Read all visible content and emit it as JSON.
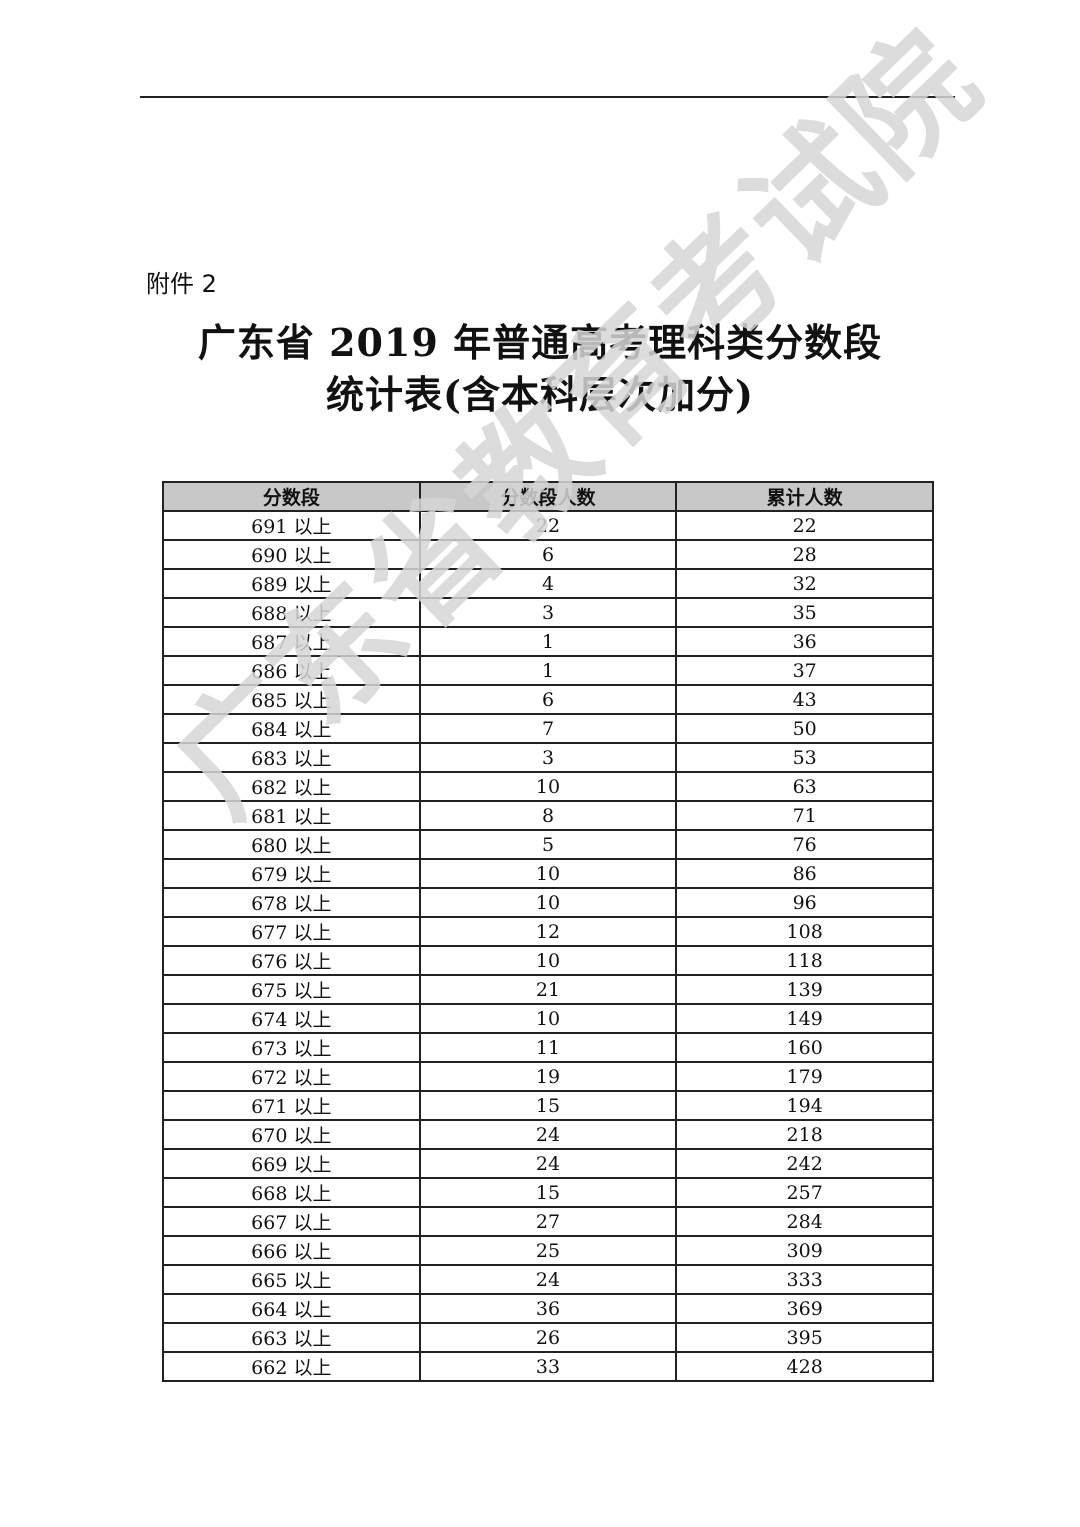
{
  "header": {
    "attachment_label": "附件 2"
  },
  "title": {
    "line1": "广东省 2019 年普通高考理科类分数段",
    "line2": "统计表(含本科层次加分)"
  },
  "watermark": "广东省教育考试院",
  "table": {
    "columns": [
      "分数段",
      "分数段人数",
      "累计人数"
    ],
    "rows": [
      [
        "691 以上",
        "22",
        "22"
      ],
      [
        "690 以上",
        "6",
        "28"
      ],
      [
        "689 以上",
        "4",
        "32"
      ],
      [
        "688 以上",
        "3",
        "35"
      ],
      [
        "687 以上",
        "1",
        "36"
      ],
      [
        "686 以上",
        "1",
        "37"
      ],
      [
        "685 以上",
        "6",
        "43"
      ],
      [
        "684 以上",
        "7",
        "50"
      ],
      [
        "683 以上",
        "3",
        "53"
      ],
      [
        "682 以上",
        "10",
        "63"
      ],
      [
        "681 以上",
        "8",
        "71"
      ],
      [
        "680 以上",
        "5",
        "76"
      ],
      [
        "679 以上",
        "10",
        "86"
      ],
      [
        "678 以上",
        "10",
        "96"
      ],
      [
        "677 以上",
        "12",
        "108"
      ],
      [
        "676 以上",
        "10",
        "118"
      ],
      [
        "675 以上",
        "21",
        "139"
      ],
      [
        "674 以上",
        "10",
        "149"
      ],
      [
        "673 以上",
        "11",
        "160"
      ],
      [
        "672 以上",
        "19",
        "179"
      ],
      [
        "671 以上",
        "15",
        "194"
      ],
      [
        "670 以上",
        "24",
        "218"
      ],
      [
        "669 以上",
        "24",
        "242"
      ],
      [
        "668 以上",
        "15",
        "257"
      ],
      [
        "667 以上",
        "27",
        "284"
      ],
      [
        "666 以上",
        "25",
        "309"
      ],
      [
        "665 以上",
        "24",
        "333"
      ],
      [
        "664 以上",
        "36",
        "369"
      ],
      [
        "663 以上",
        "26",
        "395"
      ],
      [
        "662 以上",
        "33",
        "428"
      ]
    ]
  }
}
